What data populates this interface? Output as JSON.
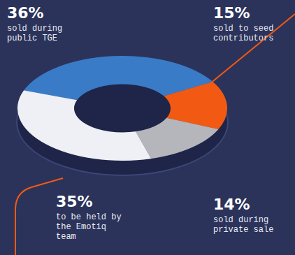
{
  "chart_data": {
    "type": "doughnut",
    "categories": [
      "sold during public TGE",
      "sold to seed contributors",
      "sold during private sale",
      "to be held by the Emotiq team"
    ],
    "values": [
      36,
      15,
      14,
      35
    ],
    "value_labels": [
      "36%",
      "15%",
      "14%",
      "35%"
    ],
    "colors": [
      "#3a7bc8",
      "#f25a14",
      "#b4b6bb",
      "#eef0f5"
    ],
    "data_labels": true
  }
}
